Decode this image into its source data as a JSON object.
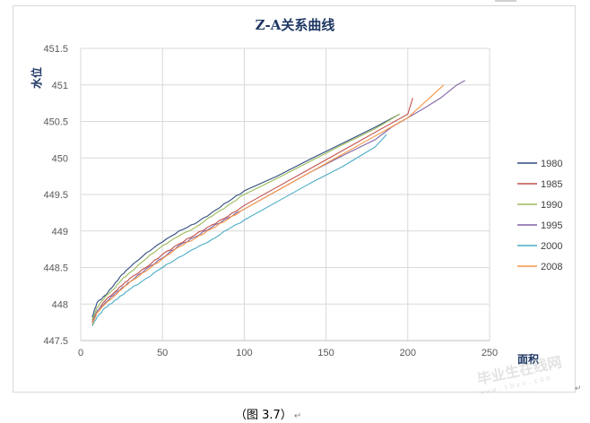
{
  "caption": {
    "text": "（图 3.7）",
    "mark": "↵"
  },
  "watermark": {
    "text": "毕业生在线网",
    "url": "www.sbvv.com"
  },
  "chart_data": {
    "type": "line",
    "title": "Z-A关系曲线",
    "xlabel": "面积",
    "ylabel": "水位",
    "xlim": [
      0,
      250
    ],
    "ylim": [
      447.5,
      451.5
    ],
    "xticks": [
      "0",
      "50",
      "100",
      "150",
      "200",
      "250"
    ],
    "yticks": [
      "447.5",
      "448",
      "448.5",
      "449",
      "449.5",
      "450",
      "450.5",
      "451",
      "451.5"
    ],
    "grid": true,
    "legend_position": "right",
    "series": [
      {
        "name": "1980",
        "color": "#2f4b7c",
        "x": [
          7,
          10,
          15,
          20,
          25,
          30,
          40,
          50,
          60,
          70,
          80,
          90,
          100,
          120,
          140,
          160,
          180,
          195
        ],
        "y": [
          447.82,
          448.02,
          448.12,
          448.25,
          448.4,
          448.5,
          448.7,
          448.85,
          449.0,
          449.1,
          449.25,
          449.4,
          449.55,
          449.75,
          449.98,
          450.2,
          450.42,
          450.6
        ]
      },
      {
        "name": "1985",
        "color": "#c0504d",
        "x": [
          7,
          10,
          15,
          20,
          25,
          30,
          40,
          50,
          60,
          70,
          80,
          90,
          100,
          120,
          140,
          160,
          180,
          200,
          203
        ],
        "y": [
          447.75,
          447.9,
          448.05,
          448.15,
          448.25,
          448.35,
          448.5,
          448.68,
          448.82,
          448.95,
          449.08,
          449.2,
          449.35,
          449.6,
          449.85,
          450.1,
          450.35,
          450.6,
          450.82
        ]
      },
      {
        "name": "1990",
        "color": "#9bbb59",
        "x": [
          7,
          10,
          15,
          20,
          25,
          30,
          40,
          50,
          60,
          70,
          80,
          90,
          100,
          120,
          140,
          160,
          180,
          195
        ],
        "y": [
          447.78,
          447.95,
          448.1,
          448.2,
          448.33,
          448.43,
          448.62,
          448.8,
          448.93,
          449.05,
          449.2,
          449.35,
          449.5,
          449.72,
          449.95,
          450.18,
          450.4,
          450.6
        ]
      },
      {
        "name": "1995",
        "color": "#8064a2",
        "x": [
          7,
          10,
          15,
          20,
          25,
          30,
          40,
          50,
          60,
          70,
          80,
          90,
          100,
          120,
          140,
          160,
          180,
          190,
          200,
          210,
          220,
          230,
          235
        ],
        "y": [
          447.75,
          447.9,
          448.02,
          448.12,
          448.22,
          448.3,
          448.48,
          448.63,
          448.8,
          448.92,
          449.05,
          449.18,
          449.3,
          449.55,
          449.8,
          450.03,
          450.25,
          450.42,
          450.55,
          450.68,
          450.82,
          451.0,
          451.06
        ]
      },
      {
        "name": "2000",
        "color": "#4bacc6",
        "x": [
          7,
          10,
          15,
          20,
          25,
          30,
          40,
          50,
          60,
          70,
          80,
          90,
          100,
          120,
          140,
          160,
          180,
          187
        ],
        "y": [
          447.7,
          447.82,
          447.95,
          448.03,
          448.12,
          448.2,
          448.35,
          448.5,
          448.64,
          448.76,
          448.88,
          449.02,
          449.15,
          449.4,
          449.65,
          449.88,
          450.15,
          450.32
        ]
      },
      {
        "name": "2008",
        "color": "#f79646",
        "x": [
          7,
          10,
          15,
          20,
          25,
          30,
          40,
          50,
          60,
          70,
          80,
          90,
          100,
          120,
          140,
          160,
          180,
          200,
          222
        ],
        "y": [
          447.72,
          447.88,
          448.0,
          448.1,
          448.2,
          448.3,
          448.45,
          448.62,
          448.78,
          448.9,
          449.03,
          449.16,
          449.3,
          449.55,
          449.8,
          450.05,
          450.3,
          450.55,
          451.0
        ]
      }
    ]
  }
}
